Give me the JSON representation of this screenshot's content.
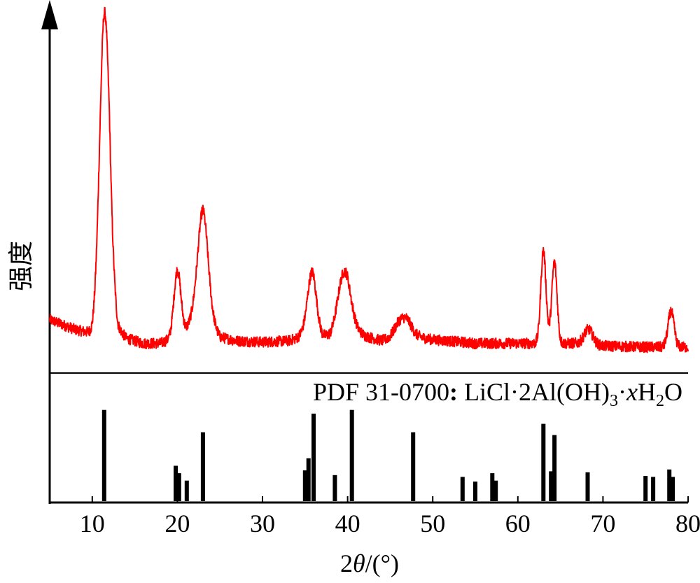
{
  "chart_data": {
    "type": "line",
    "xlabel": {
      "prefix": "2",
      "symbol": "θ",
      "suffix": "/(°)"
    },
    "ylabel": "强度",
    "xlim": [
      5,
      80
    ],
    "xticks": [
      10,
      20,
      30,
      40,
      50,
      60,
      70,
      80
    ],
    "grid": false,
    "legend": "none",
    "colors": {
      "pattern": "#ff0000",
      "reference": "#000000",
      "axes": "#000000"
    },
    "y_units": "arbitrary intensity (0–1)",
    "pattern": {
      "color": "#ff0000",
      "background": [
        [
          5,
          0.24
        ],
        [
          8,
          0.16
        ],
        [
          10,
          0.13
        ],
        [
          11,
          0.3
        ],
        [
          12,
          0.7
        ],
        [
          13,
          0.18
        ],
        [
          14,
          0.09
        ],
        [
          16,
          0.05
        ],
        [
          18,
          0.05
        ],
        [
          19,
          0.08
        ],
        [
          20,
          0.12
        ],
        [
          21,
          0.16
        ],
        [
          22,
          0.28
        ],
        [
          23,
          0.35
        ],
        [
          24,
          0.22
        ],
        [
          25,
          0.1
        ],
        [
          27,
          0.07
        ],
        [
          30,
          0.06
        ],
        [
          33,
          0.07
        ],
        [
          34,
          0.09
        ],
        [
          35,
          0.15
        ],
        [
          36,
          0.2
        ],
        [
          37,
          0.11
        ],
        [
          38,
          0.11
        ],
        [
          39,
          0.2
        ],
        [
          40,
          0.24
        ],
        [
          41,
          0.16
        ],
        [
          42,
          0.11
        ],
        [
          44,
          0.07
        ],
        [
          45,
          0.08
        ],
        [
          46,
          0.13
        ],
        [
          47,
          0.15
        ],
        [
          48,
          0.1
        ],
        [
          50,
          0.08
        ],
        [
          55,
          0.05
        ],
        [
          60,
          0.05
        ],
        [
          62,
          0.05
        ],
        [
          63,
          0.08
        ],
        [
          64,
          0.08
        ],
        [
          65,
          0.05
        ],
        [
          68,
          0.05
        ],
        [
          70,
          0.03
        ],
        [
          75,
          0.02
        ],
        [
          78,
          0.02
        ],
        [
          80,
          0.02
        ]
      ],
      "peaks": [
        {
          "x": 11.4,
          "h": 0.78,
          "w": 0.55
        },
        {
          "x": 20.0,
          "h": 0.18,
          "w": 0.4
        },
        {
          "x": 23.0,
          "h": 0.27,
          "w": 0.6
        },
        {
          "x": 35.8,
          "h": 0.15,
          "w": 0.5
        },
        {
          "x": 39.6,
          "h": 0.14,
          "w": 0.7
        },
        {
          "x": 46.5,
          "h": 0.04,
          "w": 0.9
        },
        {
          "x": 63.0,
          "h": 0.25,
          "w": 0.3
        },
        {
          "x": 64.3,
          "h": 0.22,
          "w": 0.3
        },
        {
          "x": 68.3,
          "h": 0.04,
          "w": 0.5
        },
        {
          "x": 78.0,
          "h": 0.1,
          "w": 0.35
        }
      ],
      "noise": 0.03
    },
    "reference": {
      "label_parts": {
        "prefix": "PDF 31-0700",
        "colon": ":",
        "formula_a": " LiCl·2Al(OH)",
        "sub_3": "3",
        "dot": "·",
        "x": "x",
        "H": "H",
        "sub_2": "2",
        "O": "O"
      },
      "sticks": [
        {
          "x": 11.4,
          "y": 0.98
        },
        {
          "x": 19.8,
          "y": 0.38
        },
        {
          "x": 20.2,
          "y": 0.3
        },
        {
          "x": 21.1,
          "y": 0.22
        },
        {
          "x": 23.0,
          "y": 0.74
        },
        {
          "x": 35.0,
          "y": 0.33
        },
        {
          "x": 35.4,
          "y": 0.46
        },
        {
          "x": 36.0,
          "y": 0.94
        },
        {
          "x": 38.5,
          "y": 0.28
        },
        {
          "x": 40.5,
          "y": 0.98
        },
        {
          "x": 47.7,
          "y": 0.74
        },
        {
          "x": 53.5,
          "y": 0.26
        },
        {
          "x": 55.0,
          "y": 0.21
        },
        {
          "x": 57.0,
          "y": 0.3
        },
        {
          "x": 57.4,
          "y": 0.22
        },
        {
          "x": 63.0,
          "y": 0.83
        },
        {
          "x": 63.9,
          "y": 0.32
        },
        {
          "x": 64.3,
          "y": 0.71
        },
        {
          "x": 68.2,
          "y": 0.31
        },
        {
          "x": 75.0,
          "y": 0.27
        },
        {
          "x": 75.9,
          "y": 0.26
        },
        {
          "x": 77.8,
          "y": 0.34
        },
        {
          "x": 78.2,
          "y": 0.26
        }
      ]
    }
  }
}
